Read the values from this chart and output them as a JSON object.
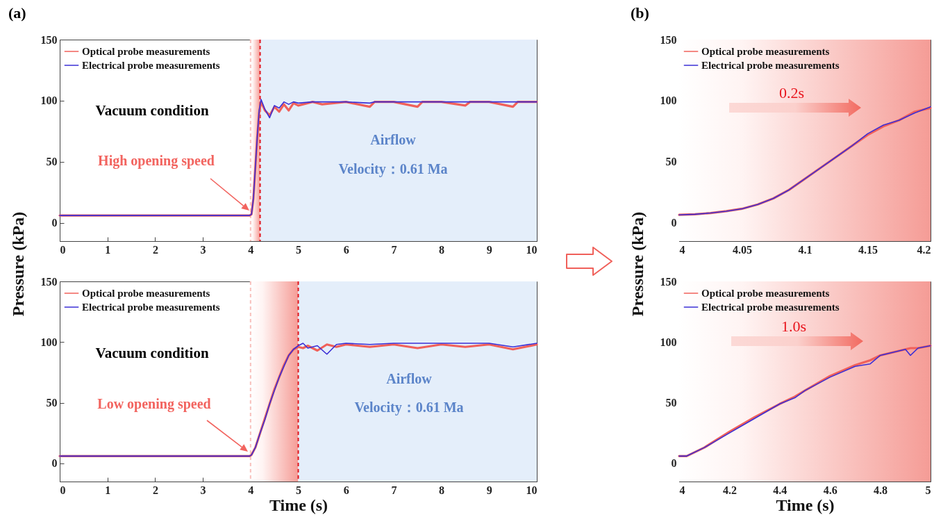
{
  "chart_data": [
    {
      "type": "line",
      "ylabel": "Pressure (kPa)",
      "xlim": [
        0,
        10
      ],
      "xticks": [
        0,
        1,
        2,
        3,
        4,
        5,
        6,
        7,
        8,
        9,
        10
      ],
      "ylim": [
        -15,
        150
      ],
      "yticks": [
        0,
        50,
        100,
        150
      ],
      "legend": "top left",
      "annotations": [
        "(a)",
        "Vacuum condition",
        "High opening speed",
        "Airflow",
        "Velocity：0.61 Ma"
      ],
      "bands": [
        {
          "axis": "x",
          "from": 4,
          "to": 4.2,
          "color": "#f59c96"
        },
        {
          "axis": "x",
          "from": 4.2,
          "to": 10,
          "color": "#e4eefa"
        }
      ],
      "ref_lines": [
        {
          "axis": "x",
          "value": 4,
          "color": "#f8c0bc",
          "line_style": "dashed"
        },
        {
          "axis": "x",
          "value": 4.2,
          "color": "#e0161e",
          "line_style": "dashed"
        }
      ],
      "x": [
        0,
        3.98,
        4.02,
        4.06,
        4.1,
        4.14,
        4.18,
        4.22,
        4.3,
        4.4,
        4.5,
        4.6,
        4.7,
        4.8,
        4.9,
        5,
        5.3,
        5.5,
        6,
        6.5,
        6.6,
        7,
        7.5,
        7.6,
        8,
        8.5,
        8.6,
        9,
        9.5,
        9.6,
        10
      ],
      "series": [
        {
          "name": "Optical probe measurements",
          "color": "#f0605a",
          "values": [
            6,
            6,
            7,
            20,
            45,
            70,
            90,
            99,
            92,
            88,
            95,
            91,
            97,
            92,
            98,
            96,
            99,
            97,
            99,
            95,
            99,
            99,
            95,
            99,
            99,
            96,
            99,
            99,
            95,
            99,
            99
          ]
        },
        {
          "name": "Electrical probe measurements",
          "color": "#3b2fd6",
          "values": [
            6,
            6,
            7,
            20,
            45,
            70,
            92,
            101,
            93,
            86,
            96,
            94,
            99,
            97,
            99,
            98,
            99,
            99,
            99,
            98,
            99,
            99,
            99,
            99,
            99,
            99,
            99,
            99,
            99,
            99,
            99
          ]
        }
      ]
    },
    {
      "type": "line",
      "xlabel": "Time (s)",
      "xlim": [
        0,
        10
      ],
      "xticks": [
        0,
        1,
        2,
        3,
        4,
        5,
        6,
        7,
        8,
        9,
        10
      ],
      "ylim": [
        -15,
        150
      ],
      "yticks": [
        0,
        50,
        100,
        150
      ],
      "legend": "top left",
      "annotations": [
        "Vacuum condition",
        "Low opening speed",
        "Airflow",
        "Velocity：0.61 Ma"
      ],
      "bands": [
        {
          "axis": "x",
          "from": 4,
          "to": 5,
          "color": "#f59c96"
        },
        {
          "axis": "x",
          "from": 5,
          "to": 10,
          "color": "#e4eefa"
        }
      ],
      "ref_lines": [
        {
          "axis": "x",
          "value": 4,
          "color": "#f8c0bc",
          "line_style": "dashed"
        },
        {
          "axis": "x",
          "value": 5,
          "color": "#e0161e",
          "line_style": "dashed"
        }
      ],
      "x": [
        0,
        3.98,
        4.02,
        4.1,
        4.2,
        4.3,
        4.4,
        4.5,
        4.6,
        4.7,
        4.8,
        4.9,
        5,
        5.1,
        5.2,
        5.4,
        5.6,
        5.8,
        6,
        6.5,
        7,
        7.5,
        8,
        8.5,
        9,
        9.5,
        10
      ],
      "series": [
        {
          "name": "Optical probe measurements",
          "color": "#f0605a",
          "values": [
            6,
            6,
            7,
            13,
            25,
            37,
            49,
            61,
            71,
            81,
            89,
            94,
            96,
            95,
            97,
            93,
            98,
            96,
            98,
            96,
            98,
            95,
            98,
            96,
            98,
            94,
            98
          ]
        },
        {
          "name": "Electrical probe measurements",
          "color": "#3b2fd6",
          "values": [
            6,
            6,
            7,
            13,
            25,
            36,
            49,
            60,
            71,
            80,
            89,
            94,
            97,
            99,
            95,
            97,
            90,
            98,
            99,
            98,
            99,
            99,
            99,
            99,
            99,
            96,
            99
          ]
        }
      ]
    },
    {
      "type": "line",
      "ylabel": "Pressure (kPa)",
      "xlim": [
        4,
        4.2
      ],
      "xticks": [
        4,
        4.05,
        4.1,
        4.15,
        4.2
      ],
      "ylim": [
        -15,
        150
      ],
      "yticks": [
        0,
        50,
        100,
        150
      ],
      "legend": "top left",
      "annotations": [
        "(b)",
        "0.2s"
      ],
      "bands": [
        {
          "axis": "x",
          "from": 4,
          "to": 4.2,
          "color": "#f59c96"
        }
      ],
      "x": [
        4,
        4.0125,
        4.025,
        4.0375,
        4.05,
        4.0625,
        4.075,
        4.0875,
        4.1,
        4.1125,
        4.125,
        4.1375,
        4.15,
        4.1625,
        4.175,
        4.1875,
        4.2
      ],
      "series": [
        {
          "name": "Optical probe measurements",
          "color": "#f0605a",
          "values": [
            6.5,
            7,
            8,
            9.5,
            11.5,
            15,
            20,
            27,
            36,
            45,
            54,
            63,
            72,
            79,
            84,
            91,
            94
          ]
        },
        {
          "name": "Electrical probe measurements",
          "color": "#3b2fd6",
          "values": [
            6.5,
            7,
            8,
            9.5,
            11.5,
            15,
            20,
            27,
            36,
            45,
            54,
            63,
            73,
            80,
            84,
            90,
            95
          ]
        }
      ]
    },
    {
      "type": "line",
      "xlabel": "Time (s)",
      "xlim": [
        4,
        5
      ],
      "xticks": [
        4,
        4.2,
        4.4,
        4.6,
        4.8,
        5
      ],
      "ylim": [
        -15,
        150
      ],
      "yticks": [
        0,
        50,
        100,
        150
      ],
      "legend": "top left",
      "annotations": [
        "1.0s"
      ],
      "bands": [
        {
          "axis": "x",
          "from": 4,
          "to": 5,
          "color": "#f59c96"
        }
      ],
      "x": [
        4,
        4.03,
        4.1,
        4.2,
        4.3,
        4.4,
        4.46,
        4.5,
        4.6,
        4.7,
        4.76,
        4.8,
        4.9,
        4.92,
        4.95,
        5
      ],
      "series": [
        {
          "name": "Optical probe measurements",
          "color": "#f0605a",
          "values": [
            6,
            6,
            13,
            26,
            38,
            49,
            55,
            60,
            72,
            81,
            85,
            89,
            94,
            95,
            95,
            97
          ]
        },
        {
          "name": "Electrical probe measurements",
          "color": "#3b2fd6",
          "values": [
            6,
            6,
            13,
            25,
            37,
            49,
            54,
            60,
            71,
            80,
            82,
            89,
            94,
            89,
            95,
            97
          ]
        }
      ]
    }
  ]
}
